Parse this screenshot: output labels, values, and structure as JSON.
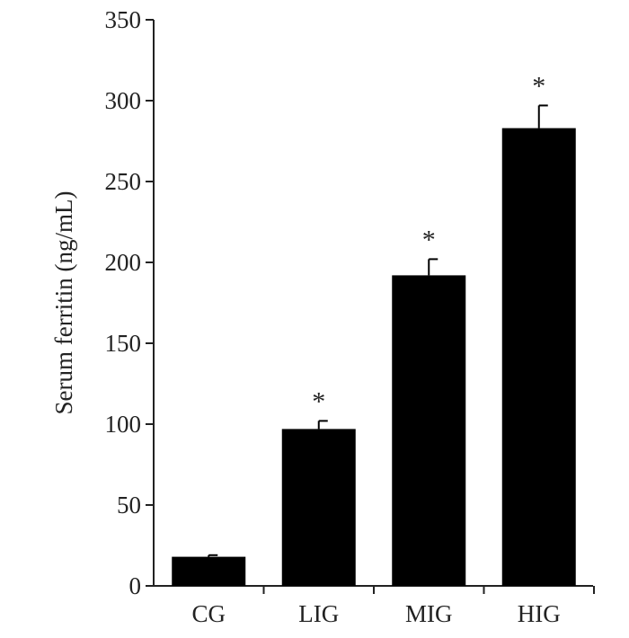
{
  "chart_data": {
    "type": "bar",
    "title": "",
    "xlabel": "",
    "ylabel": "Serum ferritin (ng/mL)",
    "categories": [
      "CG",
      "LIG",
      "MIG",
      "HIG"
    ],
    "values": [
      18,
      97,
      192,
      283
    ],
    "errors": [
      1,
      5,
      10,
      14
    ],
    "significance": [
      "",
      "*",
      "*",
      "*"
    ],
    "ylim": [
      0,
      350
    ],
    "yticks": [
      0,
      50,
      100,
      150,
      200,
      250,
      300,
      350
    ],
    "ytick_labels": [
      "0",
      "50",
      "100",
      "150",
      "200",
      "250",
      "300",
      "350"
    ],
    "grid": false,
    "bar_color": "#000000"
  }
}
